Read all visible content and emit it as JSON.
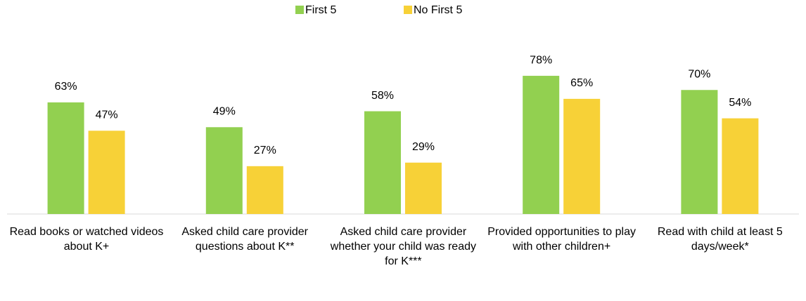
{
  "chart_data": {
    "type": "bar",
    "categories": [
      "Read books or watched videos about K+",
      "Asked child care provider questions about K**",
      "Asked child care provider whether your child was ready for K***",
      "Provided opportunities to play with other children+",
      "Read with child at least 5 days/week*"
    ],
    "series": [
      {
        "name": "First 5",
        "color": "#92d050",
        "values": [
          63,
          49,
          58,
          78,
          70
        ],
        "value_labels": [
          "63%",
          "49%",
          "58%",
          "78%",
          "70%"
        ]
      },
      {
        "name": "No First 5",
        "color": "#f7d137",
        "values": [
          47,
          27,
          29,
          65,
          54
        ],
        "value_labels": [
          "47%",
          "27%",
          "29%",
          "65%",
          "54%"
        ]
      }
    ],
    "legend": "top"
  }
}
